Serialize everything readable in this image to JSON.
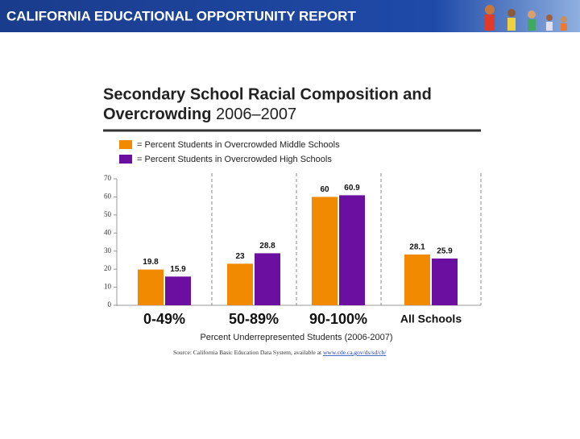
{
  "header": {
    "title": "CALIFORNIA EDUCATIONAL OPPORTUNITY REPORT"
  },
  "chart_data": {
    "type": "bar",
    "title": "Secondary School Racial Composition and",
    "title_line2": "Overcrowding",
    "subtitle": "2006–2007",
    "categories": [
      "0-49%",
      "50-89%",
      "90-100%",
      "All Schools"
    ],
    "series": [
      {
        "name": "= Percent Students in Overcrowded Middle Schools",
        "color": "#f28a00",
        "values": [
          19.8,
          23,
          60,
          28.1
        ]
      },
      {
        "name": "= Percent Students in Overcrowded High Schools",
        "color": "#6a0fa0",
        "values": [
          15.9,
          28.8,
          60.9,
          25.9
        ]
      }
    ],
    "ylim": [
      0,
      70
    ],
    "yticks": [
      0,
      10,
      20,
      30,
      40,
      50,
      60,
      70
    ],
    "xlabel": "Percent Underrepresented Students (2006-2007)",
    "source": "Source:  California Basic Education Data System, available at",
    "source_link": "www.cde.ca.gov/ds/sd/cb/"
  }
}
